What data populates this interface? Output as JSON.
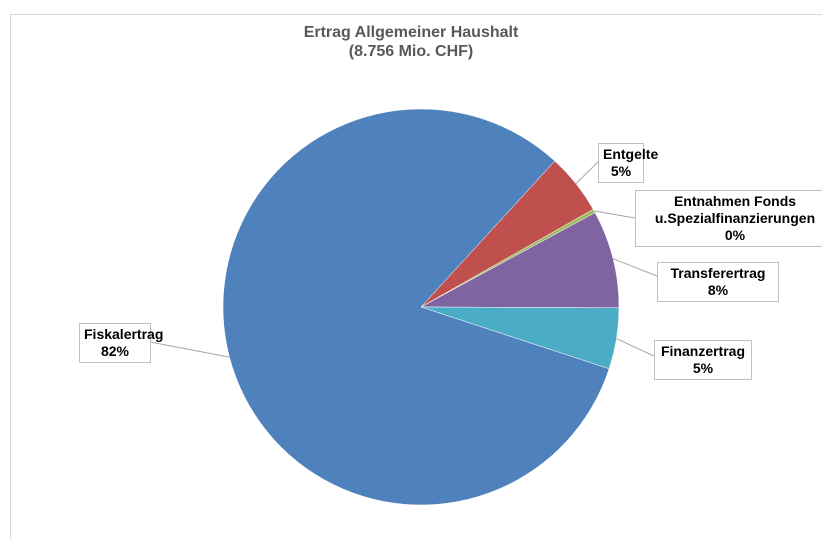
{
  "chart_data": {
    "type": "pie",
    "title": "Ertrag Allgemeiner Haushalt",
    "subtitle": "(8.756 Mio. CHF)",
    "categories": [
      "Entgelte",
      "Entnahmen Fonds u.Spezialfinanzierungen",
      "Transferertrag",
      "Finanzertrag",
      "Fiskalertrag"
    ],
    "values": [
      5,
      0.3,
      8,
      5,
      82
    ],
    "value_labels": [
      "5%",
      "0%",
      "8%",
      "5%",
      "82%"
    ],
    "colors": [
      "#c0504d",
      "#9bbb59",
      "#8064a2",
      "#4bacc6",
      "#4f81bd"
    ]
  }
}
